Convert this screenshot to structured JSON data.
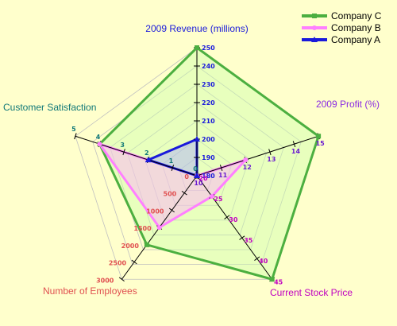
{
  "chart_data": {
    "type": "radar",
    "title": "",
    "axes": [
      {
        "name": "2009 Revenue (millions)",
        "min": 180,
        "max": 250,
        "ticks": [
          "180",
          "190",
          "200",
          "210",
          "220",
          "230",
          "240",
          "250"
        ],
        "color": "#1a1adb",
        "tick_color": "#1a1adb"
      },
      {
        "name": "2009 Profit (%)",
        "min": 10,
        "max": 15,
        "ticks": [
          "10",
          "11",
          "12",
          "13",
          "14",
          "15"
        ],
        "color": "#8a2be2",
        "tick_color": "#6a1ad0"
      },
      {
        "name": "Current Stock Price",
        "min": 20,
        "max": 45,
        "ticks": [
          "20",
          "25",
          "30",
          "35",
          "40",
          "45"
        ],
        "color": "#c000c0",
        "tick_color": "#c000c0"
      },
      {
        "name": "Number of Employees",
        "min": 0,
        "max": 3000,
        "ticks": [
          "0",
          "500",
          "1000",
          "1500",
          "2000",
          "2500",
          "3000"
        ],
        "color": "#e05050",
        "tick_color": "#e05050"
      },
      {
        "name": "Customer Satisfaction",
        "min": 0,
        "max": 5,
        "ticks": [
          "0",
          "1",
          "2",
          "3",
          "4",
          "5"
        ],
        "color": "#107878",
        "tick_color": "#107878"
      }
    ],
    "series": [
      {
        "name": "Company C",
        "values": [
          250,
          15,
          45,
          2000,
          4
        ],
        "color": "#4caf40",
        "fill": "#ccffaa",
        "marker": "square"
      },
      {
        "name": "Company B",
        "values": [
          180,
          12,
          25,
          1500,
          4
        ],
        "color": "#ff80ff",
        "fill": "#ffaaff",
        "marker": "circle"
      },
      {
        "name": "Company A",
        "values": [
          200,
          10,
          20,
          0,
          2
        ],
        "color": "#1a1adb",
        "fill": "#aaaaff",
        "marker": "triangle"
      }
    ],
    "legend_position": "top-right",
    "grid": true
  }
}
